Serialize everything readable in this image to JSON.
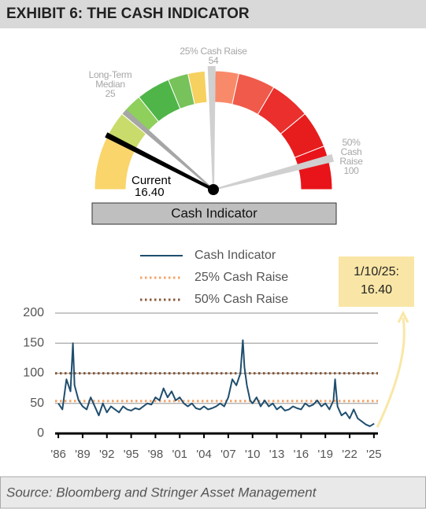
{
  "title": "EXHIBIT 6: THE CASH INDICATOR",
  "source": "Source: Bloomberg and Stringer Asset Management",
  "chart_data": [
    {
      "type": "gauge",
      "label": "Cash Indicator",
      "range": [
        0,
        109
      ],
      "bands": [
        {
          "from": 0,
          "to": 16,
          "color": "#f9d56b"
        },
        {
          "from": 16,
          "to": 24,
          "color": "#c9db6a"
        },
        {
          "from": 24,
          "to": 31,
          "color": "#8fcf5c"
        },
        {
          "from": 31,
          "to": 41,
          "color": "#4fb548"
        },
        {
          "from": 41,
          "to": 47,
          "color": "#77c25a"
        },
        {
          "from": 47,
          "to": 52,
          "color": "#f6d15f"
        },
        {
          "from": 55,
          "to": 62,
          "color": "#f88a6a"
        },
        {
          "from": 62,
          "to": 73,
          "color": "#f05a4a"
        },
        {
          "from": 73,
          "to": 85,
          "color": "#ea2f2c"
        },
        {
          "from": 85,
          "to": 96,
          "color": "#e71d1d"
        },
        {
          "from": 96,
          "to": 109,
          "color": "#e8141a"
        }
      ],
      "markers": [
        {
          "name": "Long-Term Median",
          "value": 25
        },
        {
          "name": "25% Cash Raise",
          "value": 54
        },
        {
          "name": "50% Cash Raise",
          "value": 100
        }
      ],
      "current": {
        "name": "Current",
        "value": 16.4,
        "value_label": "16.40"
      }
    },
    {
      "type": "line",
      "x": [
        1986,
        1986.5,
        1987,
        1987.5,
        1987.8,
        1988,
        1988.5,
        1989,
        1989.5,
        1990,
        1990.5,
        1991,
        1991.5,
        1992,
        1992.5,
        1993,
        1993.5,
        1994,
        1994.5,
        1995,
        1995.5,
        1996,
        1996.5,
        1997,
        1997.5,
        1998,
        1998.5,
        1999,
        1999.5,
        2000,
        2000.5,
        2001,
        2001.5,
        2002,
        2002.5,
        2003,
        2003.5,
        2004,
        2004.5,
        2005,
        2005.5,
        2006,
        2006.5,
        2007,
        2007.5,
        2008,
        2008.5,
        2008.8,
        2009,
        2009.3,
        2009.7,
        2010,
        2010.5,
        2011,
        2011.5,
        2012,
        2012.5,
        2013,
        2013.5,
        2014,
        2014.5,
        2015,
        2015.5,
        2016,
        2016.5,
        2017,
        2017.5,
        2018,
        2018.5,
        2019,
        2019.5,
        2020,
        2020.2,
        2020.5,
        2021,
        2021.5,
        2022,
        2022.5,
        2023,
        2023.5,
        2024,
        2024.5,
        2025.03
      ],
      "series": [
        {
          "name": "Cash Indicator",
          "color": "#1f4e6e",
          "values": [
            50,
            40,
            90,
            70,
            150,
            80,
            55,
            45,
            40,
            60,
            45,
            30,
            50,
            35,
            45,
            40,
            35,
            45,
            40,
            38,
            42,
            40,
            45,
            50,
            48,
            60,
            55,
            75,
            60,
            70,
            55,
            60,
            50,
            45,
            50,
            42,
            40,
            45,
            40,
            42,
            45,
            50,
            45,
            60,
            90,
            80,
            100,
            155,
            110,
            80,
            55,
            50,
            60,
            45,
            55,
            45,
            50,
            40,
            45,
            38,
            40,
            45,
            42,
            40,
            50,
            45,
            48,
            55,
            45,
            50,
            40,
            55,
            90,
            45,
            30,
            35,
            25,
            40,
            25,
            20,
            15,
            12,
            16.4
          ]
        }
      ],
      "reference_lines": [
        {
          "name": "25% Cash Raise",
          "value": 54,
          "color": "#f4a46a"
        },
        {
          "name": "50% Cash Raise",
          "value": 100,
          "color": "#8a5a3a"
        }
      ],
      "xlim": [
        1985.6,
        2025.5
      ],
      "xticks": [
        {
          "value": 1986,
          "label": "'86"
        },
        {
          "value": 1989,
          "label": "'89"
        },
        {
          "value": 1992,
          "label": "'92"
        },
        {
          "value": 1995,
          "label": "'95"
        },
        {
          "value": 1998,
          "label": "'98"
        },
        {
          "value": 2001,
          "label": "'01"
        },
        {
          "value": 2004,
          "label": "'04"
        },
        {
          "value": 2007,
          "label": "'07"
        },
        {
          "value": 2010,
          "label": "'10"
        },
        {
          "value": 2013,
          "label": "'13"
        },
        {
          "value": 2016,
          "label": "'16"
        },
        {
          "value": 2019,
          "label": "'19"
        },
        {
          "value": 2022,
          "label": "'22"
        },
        {
          "value": 2025,
          "label": "'25"
        }
      ],
      "ylim": [
        0,
        200
      ],
      "yticks": [
        0,
        50,
        100,
        150,
        200
      ],
      "grid": true,
      "annotation": {
        "text": "1/10/25:",
        "value": 16.4,
        "value_label": "16.40"
      }
    }
  ]
}
